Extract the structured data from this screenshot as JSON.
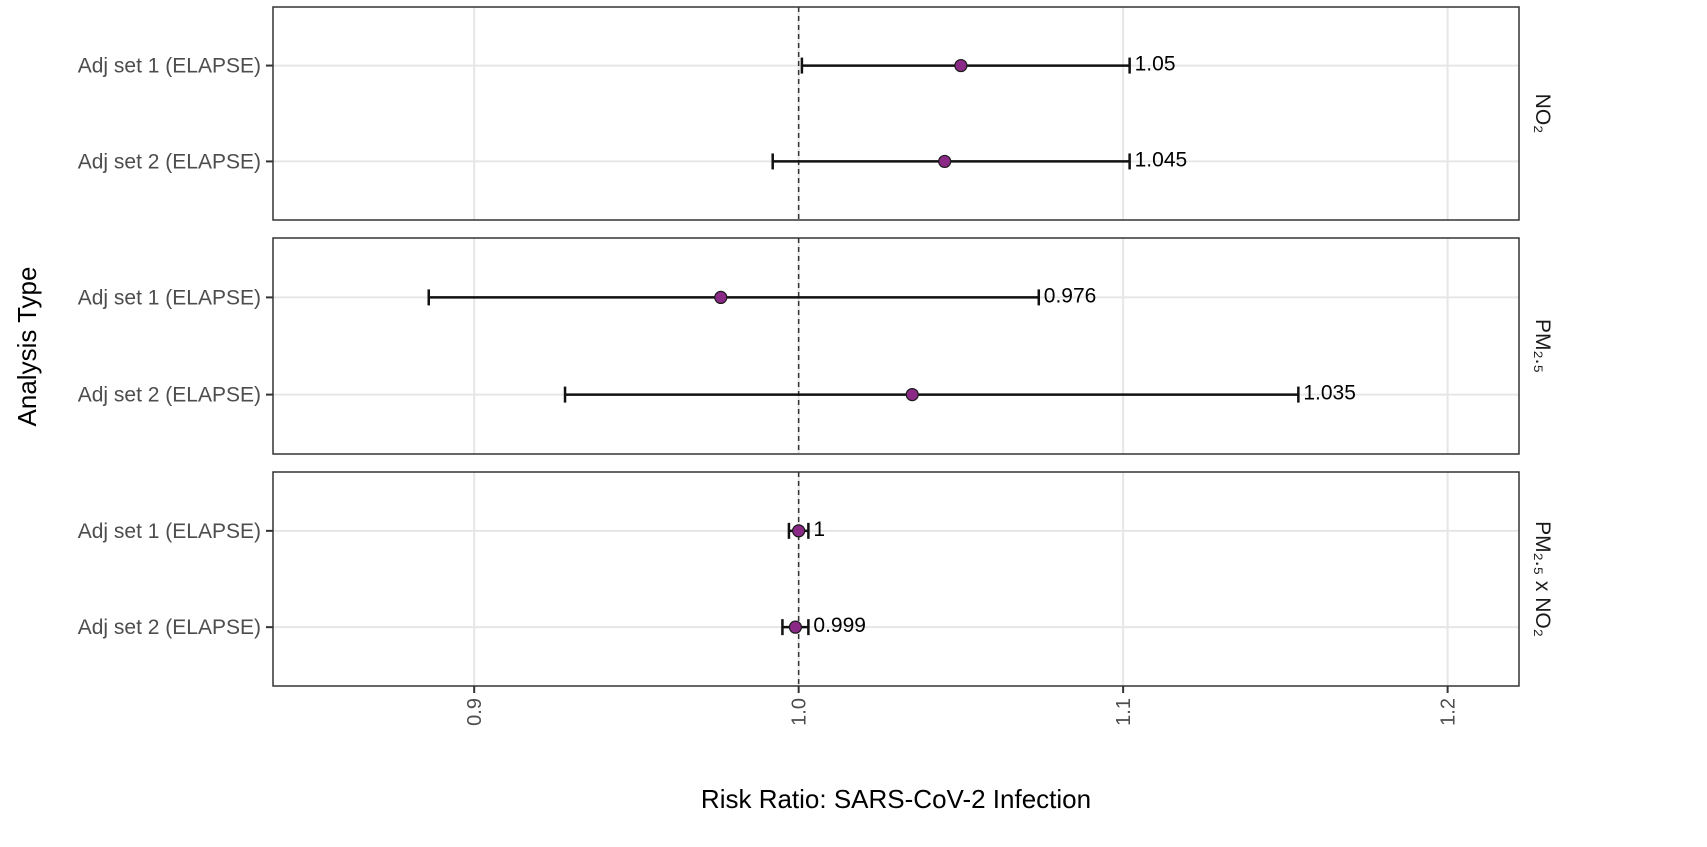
{
  "chart_data": {
    "type": "forest",
    "xlabel": "Risk Ratio: SARS-CoV-2 Infection",
    "ylabel": "Analysis Type",
    "xlim": [
      0.838,
      1.222
    ],
    "xticks": [
      {
        "value": 0.9,
        "label": "0.9"
      },
      {
        "value": 1.0,
        "label": "1.0"
      },
      {
        "value": 1.1,
        "label": "1.1"
      },
      {
        "value": 1.2,
        "label": "1.2"
      }
    ],
    "reference_line": 1.0,
    "grid": true,
    "point_color": "#8b2a86",
    "panels": [
      {
        "strip_label": "NO₂",
        "rows": [
          {
            "label": "Adj set 1 (ELAPSE)",
            "estimate": 1.05,
            "lower": 1.001,
            "upper": 1.102,
            "value_label": "1.05"
          },
          {
            "label": "Adj set 2 (ELAPSE)",
            "estimate": 1.045,
            "lower": 0.992,
            "upper": 1.102,
            "value_label": "1.045"
          }
        ]
      },
      {
        "strip_label": "PM₂.₅",
        "rows": [
          {
            "label": "Adj set 1 (ELAPSE)",
            "estimate": 0.976,
            "lower": 0.886,
            "upper": 1.074,
            "value_label": "0.976"
          },
          {
            "label": "Adj set 2 (ELAPSE)",
            "estimate": 1.035,
            "lower": 0.928,
            "upper": 1.154,
            "value_label": "1.035"
          }
        ]
      },
      {
        "strip_label": "PM₂.₅ x NO₂",
        "rows": [
          {
            "label": "Adj set 1 (ELAPSE)",
            "estimate": 1.0,
            "lower": 0.997,
            "upper": 1.003,
            "value_label": "1"
          },
          {
            "label": "Adj set 2 (ELAPSE)",
            "estimate": 0.999,
            "lower": 0.995,
            "upper": 1.003,
            "value_label": "0.999"
          }
        ]
      }
    ]
  }
}
